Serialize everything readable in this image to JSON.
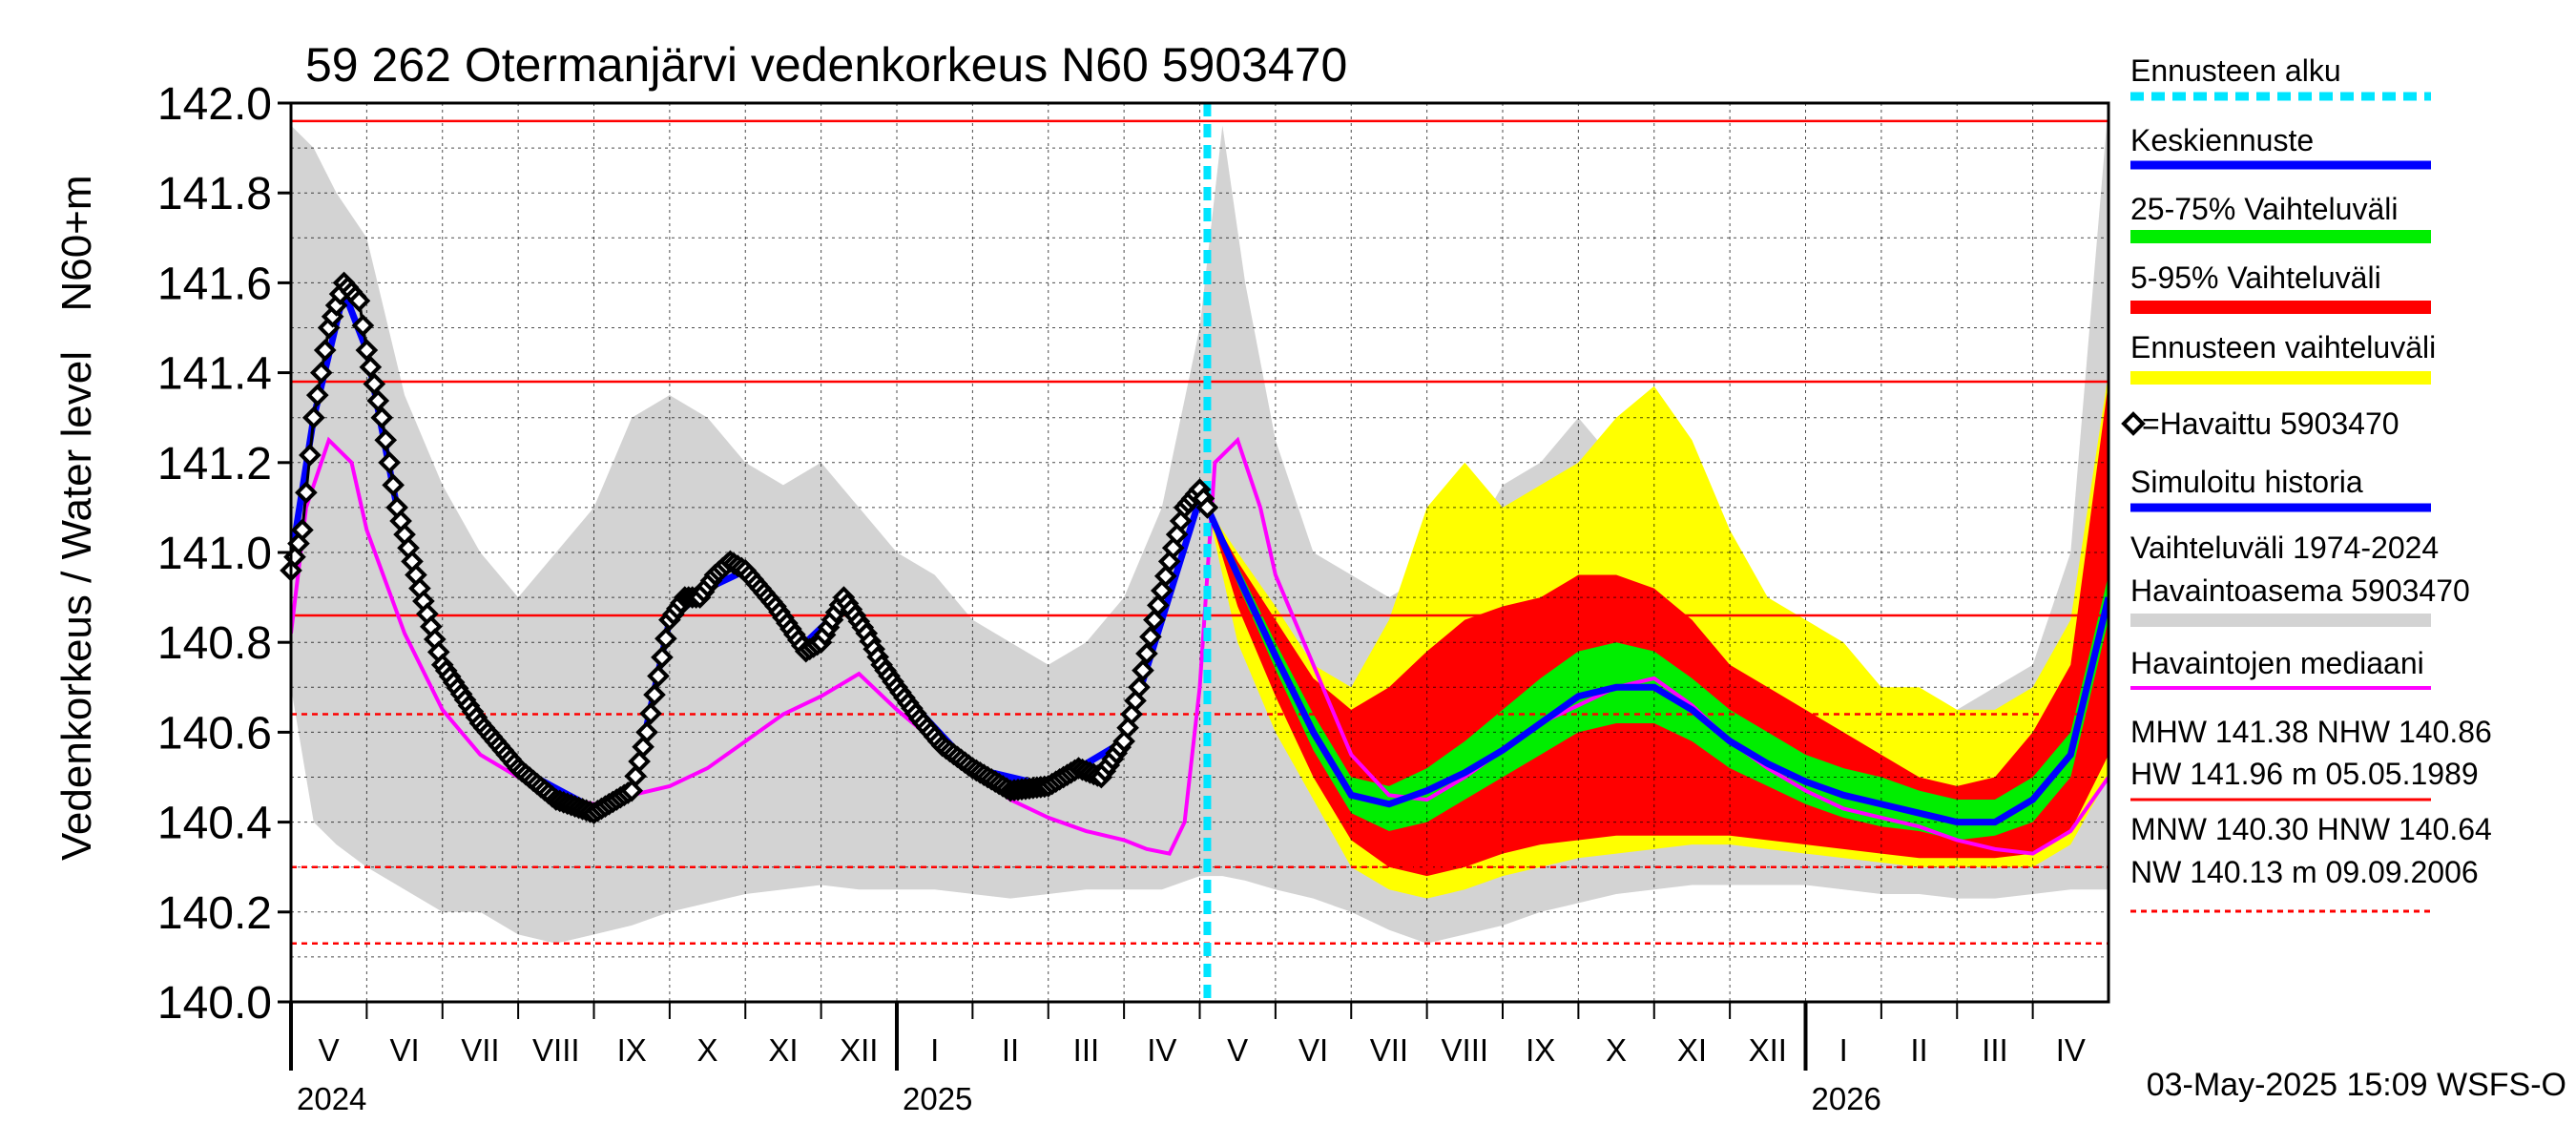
{
  "chart_data": {
    "type": "line",
    "title": "59 262 Otermanjärvi vedenkorkeus N60 5903470",
    "ylabel_line1": "Vedenkorkeus / Water level",
    "ylabel_line2": "N60+m",
    "ylim": [
      140.0,
      142.0
    ],
    "yticks": [
      "140.0",
      "140.2",
      "140.4",
      "140.6",
      "140.8",
      "141.0",
      "141.2",
      "141.4",
      "141.6",
      "141.8",
      "142.0"
    ],
    "x_start_month_index": 4.0,
    "x_end_month_index": 28.0,
    "months": [
      "V",
      "VI",
      "VII",
      "VIII",
      "IX",
      "X",
      "XI",
      "XII",
      "I",
      "II",
      "III",
      "IV",
      "V",
      "VI",
      "VII",
      "VIII",
      "IX",
      "X",
      "XI",
      "XII",
      "I",
      "II",
      "III",
      "IV"
    ],
    "years": [
      {
        "label": "2024",
        "at": 4.0
      },
      {
        "label": "2025",
        "at": 12.0
      },
      {
        "label": "2026",
        "at": 24.0
      }
    ],
    "forecast_start": 16.1,
    "reference_lines": {
      "HW": 141.96,
      "MHW": 141.38,
      "NHW": 140.86,
      "HNW": 140.64,
      "MNW": 140.3,
      "NW": 140.13
    },
    "history_band": {
      "x": [
        4.0,
        4.3,
        4.6,
        5.0,
        5.5,
        6.0,
        6.5,
        7.0,
        7.5,
        8.0,
        8.5,
        9.0,
        9.5,
        10.0,
        10.5,
        11.0,
        11.5,
        12.0,
        12.5,
        13.0,
        13.5,
        14.0,
        14.5,
        15.0,
        15.5,
        16.0,
        16.3,
        16.6,
        17.0,
        17.5,
        18.0,
        18.5,
        19.0,
        19.5,
        20.0,
        20.5,
        21.0,
        21.5,
        22.0,
        22.5,
        23.0,
        23.5,
        24.0,
        24.5,
        25.0,
        25.5,
        26.0,
        26.5,
        27.0,
        27.5,
        28.0
      ],
      "upper": [
        141.95,
        141.9,
        141.8,
        141.7,
        141.35,
        141.15,
        141.0,
        140.9,
        141.0,
        141.1,
        141.3,
        141.35,
        141.3,
        141.2,
        141.15,
        141.2,
        141.1,
        141.0,
        140.95,
        140.85,
        140.8,
        140.75,
        140.8,
        140.9,
        141.1,
        141.5,
        141.95,
        141.6,
        141.25,
        141.0,
        140.95,
        140.9,
        140.95,
        141.0,
        141.15,
        141.2,
        141.3,
        141.2,
        141.15,
        141.1,
        141.05,
        140.85,
        140.75,
        140.7,
        140.7,
        140.65,
        140.65,
        140.7,
        140.75,
        141.0,
        142.0
      ],
      "lower": [
        140.7,
        140.4,
        140.35,
        140.3,
        140.25,
        140.2,
        140.2,
        140.15,
        140.13,
        140.15,
        140.17,
        140.2,
        140.22,
        140.24,
        140.25,
        140.26,
        140.25,
        140.25,
        140.25,
        140.24,
        140.23,
        140.24,
        140.25,
        140.25,
        140.25,
        140.28,
        140.28,
        140.27,
        140.25,
        140.23,
        140.2,
        140.16,
        140.13,
        140.15,
        140.17,
        140.2,
        140.22,
        140.24,
        140.25,
        140.26,
        140.26,
        140.26,
        140.26,
        140.25,
        140.24,
        140.24,
        140.23,
        140.23,
        140.24,
        140.25,
        140.25
      ]
    },
    "forecast_bands": {
      "x": [
        16.1,
        16.5,
        17.0,
        17.5,
        18.0,
        18.5,
        19.0,
        19.5,
        20.0,
        20.5,
        21.0,
        21.5,
        22.0,
        22.5,
        23.0,
        23.5,
        24.0,
        24.5,
        25.0,
        25.5,
        26.0,
        26.5,
        27.0,
        27.5,
        28.0
      ],
      "ens_hi": [
        141.1,
        141.0,
        140.88,
        140.75,
        140.7,
        140.85,
        141.1,
        141.2,
        141.1,
        141.15,
        141.2,
        141.3,
        141.37,
        141.25,
        141.05,
        140.9,
        140.85,
        140.8,
        140.7,
        140.7,
        140.65,
        140.65,
        140.7,
        140.85,
        141.4
      ],
      "ens_lo": [
        141.1,
        140.8,
        140.6,
        140.45,
        140.3,
        140.25,
        140.23,
        140.25,
        140.28,
        140.3,
        140.32,
        140.33,
        140.34,
        140.35,
        140.35,
        140.34,
        140.33,
        140.32,
        140.31,
        140.3,
        140.3,
        140.3,
        140.3,
        140.35,
        140.5
      ],
      "p95": [
        141.1,
        140.98,
        140.85,
        140.72,
        140.65,
        140.7,
        140.78,
        140.85,
        140.88,
        140.9,
        140.95,
        140.95,
        140.92,
        140.85,
        140.75,
        140.7,
        140.65,
        140.6,
        140.55,
        140.5,
        140.48,
        140.5,
        140.6,
        140.75,
        141.38
      ],
      "p5": [
        141.1,
        140.88,
        140.68,
        140.5,
        140.36,
        140.3,
        140.28,
        140.3,
        140.33,
        140.35,
        140.36,
        140.37,
        140.37,
        140.37,
        140.37,
        140.36,
        140.35,
        140.34,
        140.33,
        140.32,
        140.32,
        140.32,
        140.33,
        140.38,
        140.55
      ],
      "p75": [
        141.1,
        140.97,
        140.8,
        140.64,
        140.5,
        140.48,
        140.52,
        140.58,
        140.65,
        140.72,
        140.78,
        140.8,
        140.78,
        140.72,
        140.65,
        140.6,
        140.55,
        140.52,
        140.5,
        140.47,
        140.45,
        140.45,
        140.5,
        140.6,
        140.95
      ],
      "p25": [
        141.1,
        140.93,
        140.74,
        140.56,
        140.42,
        140.38,
        140.4,
        140.45,
        140.5,
        140.55,
        140.6,
        140.62,
        140.62,
        140.58,
        140.52,
        140.48,
        140.44,
        140.41,
        140.39,
        140.38,
        140.36,
        140.37,
        140.4,
        140.5,
        140.85
      ],
      "median": [
        141.1,
        140.95,
        140.77,
        140.6,
        140.45,
        140.43,
        140.46,
        140.5,
        140.56,
        140.62,
        140.68,
        140.7,
        140.7,
        140.65,
        140.58,
        140.53,
        140.49,
        140.46,
        140.44,
        140.42,
        140.4,
        140.4,
        140.45,
        140.55,
        140.9
      ]
    },
    "observed": {
      "x": [
        4.0,
        4.15,
        4.3,
        4.5,
        4.7,
        4.9,
        5.0,
        5.2,
        5.4,
        5.7,
        6.0,
        6.5,
        7.0,
        7.5,
        8.0,
        8.5,
        8.7,
        9.0,
        9.2,
        9.4,
        9.6,
        9.8,
        10.0,
        10.2,
        10.4,
        10.6,
        10.8,
        11.0,
        11.3,
        11.6,
        11.8,
        12.0,
        12.3,
        12.6,
        13.0,
        13.5,
        14.0,
        14.4,
        14.7,
        15.0,
        15.2,
        15.4,
        15.6,
        15.8,
        16.0,
        16.1
      ],
      "y": [
        140.96,
        141.05,
        141.3,
        141.5,
        141.6,
        141.56,
        141.45,
        141.3,
        141.1,
        140.92,
        140.75,
        140.62,
        140.52,
        140.45,
        140.42,
        140.47,
        140.6,
        140.85,
        140.9,
        140.9,
        140.95,
        140.98,
        140.96,
        140.92,
        140.88,
        140.83,
        140.78,
        140.8,
        140.9,
        140.82,
        140.75,
        140.7,
        140.63,
        140.57,
        140.52,
        140.47,
        140.48,
        140.52,
        140.5,
        140.58,
        140.7,
        140.85,
        140.98,
        141.1,
        141.14,
        141.1
      ]
    },
    "simulated": {
      "x": [
        4.0,
        4.3,
        4.7,
        5.0,
        5.4,
        6.0,
        7.0,
        8.0,
        8.5,
        9.0,
        9.5,
        10.0,
        10.8,
        11.3,
        12.0,
        13.0,
        14.0,
        15.0,
        15.5,
        16.0,
        16.1,
        16.5,
        17.0,
        17.5,
        18.0,
        18.5,
        19.0,
        19.5,
        20.0,
        20.5,
        21.0,
        21.5,
        22.0,
        22.5,
        23.0,
        23.5,
        24.0,
        24.5,
        25.0,
        25.5,
        26.0,
        26.5,
        27.0,
        27.5,
        28.0
      ],
      "y": [
        140.98,
        141.3,
        141.58,
        141.45,
        141.1,
        140.75,
        140.52,
        140.43,
        140.46,
        140.85,
        140.92,
        140.96,
        140.8,
        140.88,
        140.7,
        140.52,
        140.48,
        140.58,
        140.85,
        141.12,
        141.1,
        140.95,
        140.77,
        140.6,
        140.46,
        140.44,
        140.47,
        140.51,
        140.56,
        140.62,
        140.68,
        140.7,
        140.7,
        140.65,
        140.58,
        140.53,
        140.49,
        140.46,
        140.44,
        140.42,
        140.4,
        140.4,
        140.45,
        140.55,
        140.9
      ]
    },
    "median_line": {
      "x": [
        4.0,
        4.2,
        4.5,
        4.8,
        5.0,
        5.5,
        6.0,
        6.5,
        7.0,
        7.5,
        8.0,
        8.5,
        9.0,
        9.5,
        10.0,
        10.5,
        11.0,
        11.5,
        12.0,
        12.5,
        13.0,
        13.5,
        14.0,
        14.5,
        15.0,
        15.3,
        15.6,
        15.8,
        16.0,
        16.2,
        16.5,
        16.8,
        17.0,
        17.5,
        18.0,
        18.5,
        19.0,
        19.5,
        20.0,
        20.5,
        21.0,
        21.5,
        22.0,
        22.5,
        23.0,
        23.5,
        24.0,
        24.5,
        25.0,
        25.5,
        26.0,
        26.5,
        27.0,
        27.5,
        28.0
      ],
      "y": [
        140.82,
        141.1,
        141.25,
        141.2,
        141.05,
        140.82,
        140.65,
        140.55,
        140.5,
        140.46,
        140.44,
        140.46,
        140.48,
        140.52,
        140.58,
        140.64,
        140.68,
        140.73,
        140.65,
        140.58,
        140.52,
        140.45,
        140.41,
        140.38,
        140.36,
        140.34,
        140.33,
        140.4,
        140.7,
        141.2,
        141.25,
        141.1,
        140.95,
        140.75,
        140.55,
        140.46,
        140.45,
        140.5,
        140.56,
        140.62,
        140.66,
        140.7,
        140.72,
        140.66,
        140.58,
        140.52,
        140.47,
        140.43,
        140.41,
        140.39,
        140.36,
        140.34,
        140.33,
        140.38,
        140.5
      ]
    },
    "legend": {
      "forecast_start": "Ennusteen alku",
      "mean_forecast": "Keskiennuste",
      "band_25_75": "25-75% Vaihteluväli",
      "band_5_95": "5-95% Vaihteluväli",
      "ensemble": "Ennusteen vaihteluväli",
      "observed": "=Havaittu 5903470",
      "simulated": "Simuloitu historia",
      "history_1": "Vaihteluväli 1974-2024",
      "history_2": " Havaintoasema 5903470",
      "median": "Havaintojen mediaani",
      "mhw_1": "MHW 141.38 NHW 140.86",
      "mhw_2": "HW 141.96 m 05.05.1989",
      "mnw_1": "MNW 140.30 HNW 140.64",
      "mnw_2": "NW 140.13 m 09.09.2006"
    },
    "footer": "03-May-2025 15:09 WSFS-O",
    "colors": {
      "history": "#d3d3d3",
      "ensemble": "#ffff00",
      "band_5_95": "#ff0000",
      "band_25_75": "#00ee00",
      "mean": "#0000ff",
      "median": "#ff00ff",
      "observed": "#000000",
      "forecast_start": "#00e5ff",
      "ref_red": "#ff0000"
    }
  }
}
